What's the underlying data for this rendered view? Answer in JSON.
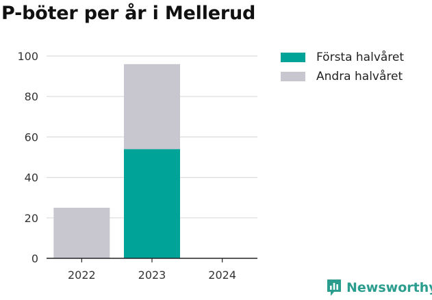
{
  "title": "P-böter per år i Mellerud",
  "chart_data": {
    "type": "bar",
    "stacked": true,
    "categories": [
      "2022",
      "2023",
      "2024"
    ],
    "series": [
      {
        "name": "Första halvåret",
        "color": "#00a398",
        "values": [
          0,
          54,
          0
        ]
      },
      {
        "name": "Andra halvåret",
        "color": "#c8c7d0",
        "values": [
          25,
          42,
          0
        ]
      }
    ],
    "ylim": [
      0,
      100
    ],
    "yticks": [
      0,
      20,
      40,
      60,
      80,
      100
    ],
    "grid": true,
    "legend": "top-right"
  },
  "brand": {
    "label": "Newsworthy",
    "color": "#2a9d8f",
    "icon": "newsworthy-logo-icon"
  }
}
